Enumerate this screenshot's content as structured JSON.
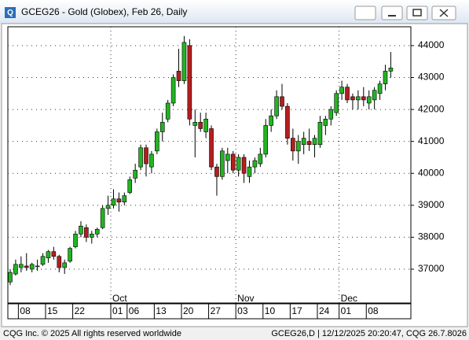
{
  "window": {
    "footer_left": "CQG Inc. © 2025 All rights reserved worldwide",
    "footer_right": "GCEG26,D | 12/12/2025 20:20:47, CQG 26.7.8026"
  },
  "chart_data": {
    "type": "candlestick",
    "title": "GCEG26 - Gold (Globex), Feb 26, Daily",
    "categories": [
      null,
      null,
      "08",
      null,
      null,
      null,
      null,
      "15",
      null,
      null,
      null,
      null,
      "22",
      null,
      null,
      null,
      null,
      null,
      null,
      "01",
      null,
      null,
      "06",
      null,
      null,
      null,
      null,
      "13",
      null,
      null,
      null,
      null,
      "20",
      null,
      null,
      null,
      null,
      "27",
      null,
      null,
      null,
      null,
      "03",
      null,
      null,
      null,
      null,
      "10",
      null,
      null,
      null,
      null,
      "17",
      null,
      null,
      null,
      null,
      "24",
      null,
      null,
      null,
      "01",
      null,
      null,
      null,
      null,
      "08",
      null,
      null,
      null,
      null
    ],
    "months": [
      null,
      null,
      null,
      null,
      null,
      null,
      null,
      null,
      null,
      null,
      null,
      null,
      null,
      null,
      null,
      null,
      null,
      null,
      null,
      "Oct",
      null,
      null,
      null,
      null,
      null,
      null,
      null,
      null,
      null,
      null,
      null,
      null,
      null,
      null,
      null,
      null,
      null,
      null,
      null,
      null,
      null,
      null,
      "Nov",
      null,
      null,
      null,
      null,
      null,
      null,
      null,
      null,
      null,
      null,
      null,
      null,
      null,
      null,
      null,
      null,
      null,
      null,
      "Dec",
      null,
      null,
      null,
      null,
      null,
      null,
      null,
      null,
      null
    ],
    "open": [
      36600,
      36850,
      37050,
      37100,
      37000,
      37100,
      37150,
      37350,
      37550,
      37400,
      37050,
      37250,
      37700,
      38100,
      38300,
      38000,
      38100,
      38300,
      38900,
      39000,
      39200,
      39100,
      39400,
      39850,
      40200,
      40800,
      40200,
      40700,
      41300,
      41700,
      42200,
      43200,
      42900,
      44000,
      41500,
      41600,
      41300,
      41400,
      40200,
      39900,
      40400,
      40600,
      40100,
      40500,
      39900,
      40200,
      40300,
      40600,
      41500,
      41800,
      42400,
      42100,
      41100,
      40700,
      40900,
      41000,
      40900,
      40900,
      41500,
      41700,
      41900,
      42500,
      42700,
      42400,
      42300,
      42400,
      42200,
      42300,
      42500,
      42800,
      43200
    ],
    "high": [
      37000,
      37300,
      37400,
      37500,
      37200,
      37300,
      37500,
      37600,
      37700,
      37450,
      37300,
      37700,
      38200,
      38500,
      38400,
      38200,
      38300,
      39000,
      39300,
      39500,
      39400,
      39400,
      39900,
      40300,
      40900,
      40900,
      40700,
      41400,
      41900,
      42300,
      43100,
      43900,
      44300,
      44200,
      42000,
      41900,
      41900,
      41500,
      40300,
      40800,
      40800,
      40700,
      40600,
      40600,
      40400,
      40500,
      40800,
      41700,
      42000,
      42600,
      42800,
      42200,
      41400,
      41200,
      41300,
      41400,
      41200,
      41800,
      41800,
      42100,
      42600,
      42900,
      42800,
      42500,
      42600,
      42700,
      42600,
      42700,
      42900,
      43400,
      43800
    ],
    "low": [
      36500,
      36800,
      36900,
      36950,
      36900,
      36950,
      37100,
      37200,
      37300,
      36900,
      36850,
      37200,
      37650,
      38000,
      37850,
      37800,
      38000,
      38250,
      38700,
      38900,
      38800,
      39000,
      39350,
      39700,
      40100,
      39900,
      40000,
      40600,
      41000,
      41600,
      42100,
      42700,
      42800,
      41500,
      40500,
      41300,
      41100,
      40100,
      39300,
      39800,
      40000,
      40000,
      39900,
      39700,
      39700,
      40000,
      40200,
      40500,
      41300,
      41700,
      42000,
      40900,
      40400,
      40300,
      40600,
      40700,
      40500,
      40800,
      41200,
      41500,
      41800,
      42300,
      42200,
      42000,
      42000,
      42100,
      42000,
      42000,
      42300,
      42600,
      43000
    ],
    "close": [
      36900,
      37150,
      37150,
      37050,
      37150,
      37100,
      37400,
      37550,
      37400,
      37050,
      37200,
      37650,
      38100,
      38350,
      38000,
      38100,
      38250,
      38900,
      39000,
      39200,
      39100,
      39300,
      39800,
      40100,
      40800,
      40300,
      40600,
      41300,
      41600,
      42200,
      43000,
      42900,
      44100,
      41700,
      41600,
      41400,
      41700,
      40200,
      39900,
      40700,
      40600,
      40100,
      40500,
      40000,
      40200,
      40400,
      40600,
      41500,
      41800,
      42400,
      42100,
      41100,
      40700,
      41000,
      41100,
      40900,
      41100,
      41600,
      41700,
      42000,
      42500,
      42700,
      42300,
      42300,
      42400,
      42300,
      42400,
      42600,
      42800,
      43200,
      43300
    ],
    "up_color": "#22b422",
    "down_color": "#b41e1e",
    "ylim": [
      35940,
      44590
    ],
    "yticks": [
      37000,
      38000,
      39000,
      40000,
      41000,
      42000,
      43000,
      44000
    ],
    "grid": true
  }
}
